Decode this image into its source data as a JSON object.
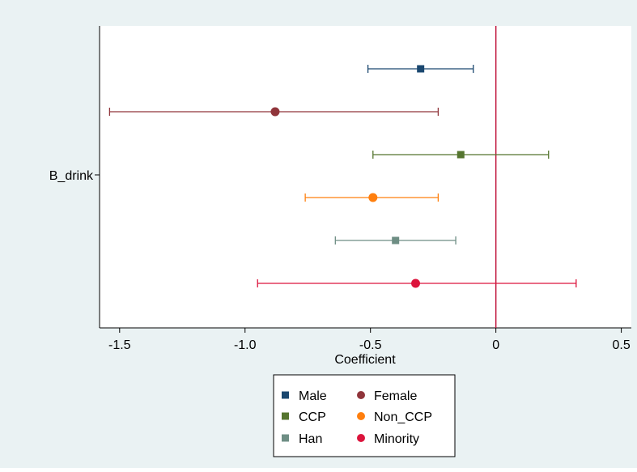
{
  "chart_data": {
    "type": "coefficient_plot",
    "xlabel": "Coefficient",
    "ylabel": "",
    "xlim": [
      -1.58,
      0.54
    ],
    "xticks": [
      -1.5,
      -1.0,
      -0.5,
      0,
      0.5
    ],
    "xtick_labels": [
      "-1.5",
      "-1.0",
      "-0.5",
      "0",
      "0.5"
    ],
    "category_label": "B_drink",
    "reference_line": {
      "x": 0,
      "color": "#c0143c"
    },
    "grid": false,
    "legend_position": "bottom",
    "series": [
      {
        "name": "Male",
        "estimate": -0.3,
        "ci_low": -0.51,
        "ci_high": -0.09,
        "marker": "square",
        "color": "#1a476f"
      },
      {
        "name": "Female",
        "estimate": -0.88,
        "ci_low": -1.54,
        "ci_high": -0.23,
        "marker": "circle",
        "color": "#90353b"
      },
      {
        "name": "CCP",
        "estimate": -0.14,
        "ci_low": -0.49,
        "ci_high": 0.21,
        "marker": "square",
        "color": "#55752f"
      },
      {
        "name": "Non_CCP",
        "estimate": -0.49,
        "ci_low": -0.76,
        "ci_high": -0.23,
        "marker": "circle",
        "color": "#ff7f0e"
      },
      {
        "name": "Han",
        "estimate": -0.4,
        "ci_low": -0.64,
        "ci_high": -0.16,
        "marker": "square",
        "color": "#6e8e84"
      },
      {
        "name": "Minority",
        "estimate": -0.32,
        "ci_low": -0.95,
        "ci_high": 0.32,
        "marker": "circle",
        "color": "#dc143c"
      }
    ]
  },
  "colors": {
    "outer_background": "#eaf2f3",
    "plot_background": "#ffffff",
    "axis": "#000000"
  }
}
